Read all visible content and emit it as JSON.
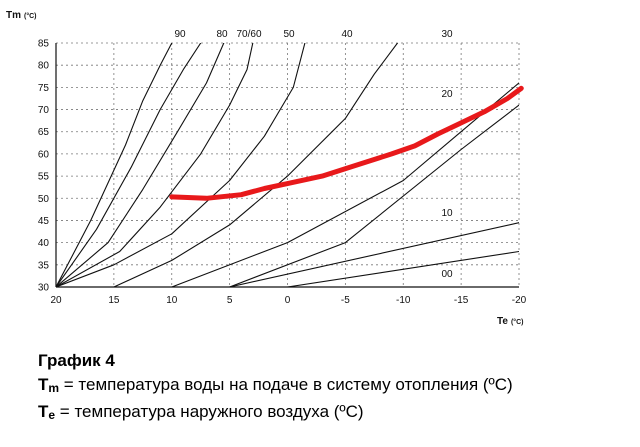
{
  "chart_data": {
    "type": "line",
    "x_axis": {
      "symbol": "Te",
      "unit": "(°C)",
      "range": [
        20,
        -20
      ],
      "ticks": [
        20,
        15,
        10,
        5,
        0,
        -5,
        -10,
        -15,
        -20
      ],
      "tick_labels": [
        "20",
        "15",
        "10",
        "5",
        "0",
        "-5",
        "-10",
        "-15",
        "-20"
      ]
    },
    "y_axis": {
      "symbol": "Tm",
      "unit": "(°C)",
      "range": [
        30,
        85
      ],
      "ticks": [
        30,
        35,
        40,
        45,
        50,
        55,
        60,
        65,
        70,
        75,
        80,
        85
      ],
      "tick_labels": [
        "30",
        "35",
        "40",
        "45",
        "50",
        "55",
        "60",
        "65",
        "70",
        "75",
        "80",
        "85"
      ]
    },
    "grid": "dashed",
    "series": [
      {
        "name": "90",
        "color": "#111111",
        "points": [
          [
            20,
            30
          ],
          [
            17,
            45
          ],
          [
            14,
            62
          ],
          [
            12.5,
            72
          ],
          [
            11,
            80
          ],
          [
            10,
            85
          ]
        ]
      },
      {
        "name": "80",
        "color": "#111111",
        "points": [
          [
            20,
            30
          ],
          [
            16.5,
            43
          ],
          [
            13.5,
            57
          ],
          [
            11,
            70
          ],
          [
            9,
            79
          ],
          [
            7.5,
            85
          ]
        ]
      },
      {
        "name": "70",
        "color": "#111111",
        "points": [
          [
            20,
            30
          ],
          [
            15.5,
            40
          ],
          [
            12.5,
            52
          ],
          [
            9.5,
            65
          ],
          [
            7,
            76
          ],
          [
            5.5,
            85
          ]
        ]
      },
      {
        "name": "60",
        "color": "#111111",
        "points": [
          [
            20,
            30
          ],
          [
            14.5,
            38
          ],
          [
            11,
            48
          ],
          [
            7.5,
            60
          ],
          [
            5,
            71
          ],
          [
            3.5,
            79
          ],
          [
            3,
            85
          ]
        ]
      },
      {
        "name": "50",
        "color": "#111111",
        "points": [
          [
            20,
            30
          ],
          [
            15,
            35
          ],
          [
            10,
            42
          ],
          [
            5,
            54
          ],
          [
            2,
            64
          ],
          [
            -0.5,
            75
          ],
          [
            -1.5,
            85
          ]
        ]
      },
      {
        "name": "40",
        "color": "#111111",
        "points": [
          [
            15,
            30
          ],
          [
            10,
            36
          ],
          [
            5,
            44
          ],
          [
            0,
            55
          ],
          [
            -5,
            68
          ],
          [
            -7.5,
            78
          ],
          [
            -9.5,
            85
          ]
        ]
      },
      {
        "name": "30",
        "color": "#111111",
        "points": [
          [
            10,
            30
          ],
          [
            0,
            40
          ],
          [
            -10,
            54
          ],
          [
            -15,
            65
          ],
          [
            -20,
            76
          ]
        ]
      },
      {
        "name": "20",
        "color": "#111111",
        "points": [
          [
            5,
            30
          ],
          [
            -5,
            40
          ],
          [
            -15,
            61
          ],
          [
            -20,
            71
          ]
        ]
      },
      {
        "name": "10",
        "color": "#111111",
        "points": [
          [
            5,
            30
          ],
          [
            -20,
            44.5
          ]
        ]
      },
      {
        "name": "00",
        "color": "#111111",
        "points": [
          [
            0,
            30
          ],
          [
            -20,
            38
          ]
        ]
      },
      {
        "name": "",
        "color": "#e8191b",
        "points": [
          [
            10,
            50.3
          ],
          [
            7,
            50
          ],
          [
            4,
            50.8
          ],
          [
            2,
            52.2
          ],
          [
            0,
            53.3
          ],
          [
            -3,
            55
          ],
          [
            -6,
            57.5
          ],
          [
            -9,
            60
          ],
          [
            -11,
            61.8
          ],
          [
            -13,
            64.5
          ],
          [
            -15,
            67
          ],
          [
            -17,
            69.5
          ],
          [
            -19,
            72.5
          ],
          [
            -20.2,
            74.8
          ]
        ]
      }
    ],
    "curve_label_text": [
      "90",
      "80",
      "70/60",
      "50",
      "40",
      "30",
      "20",
      "10",
      "00"
    ]
  },
  "caption": {
    "title": "График 4",
    "tm_symbol": "T",
    "tm_sub": "m",
    "tm_text": " = температура воды на подаче в систему отопления (ºC)",
    "te_symbol": "T",
    "te_sub": "e",
    "te_text": " = температура наружного воздуха (ºC)"
  }
}
